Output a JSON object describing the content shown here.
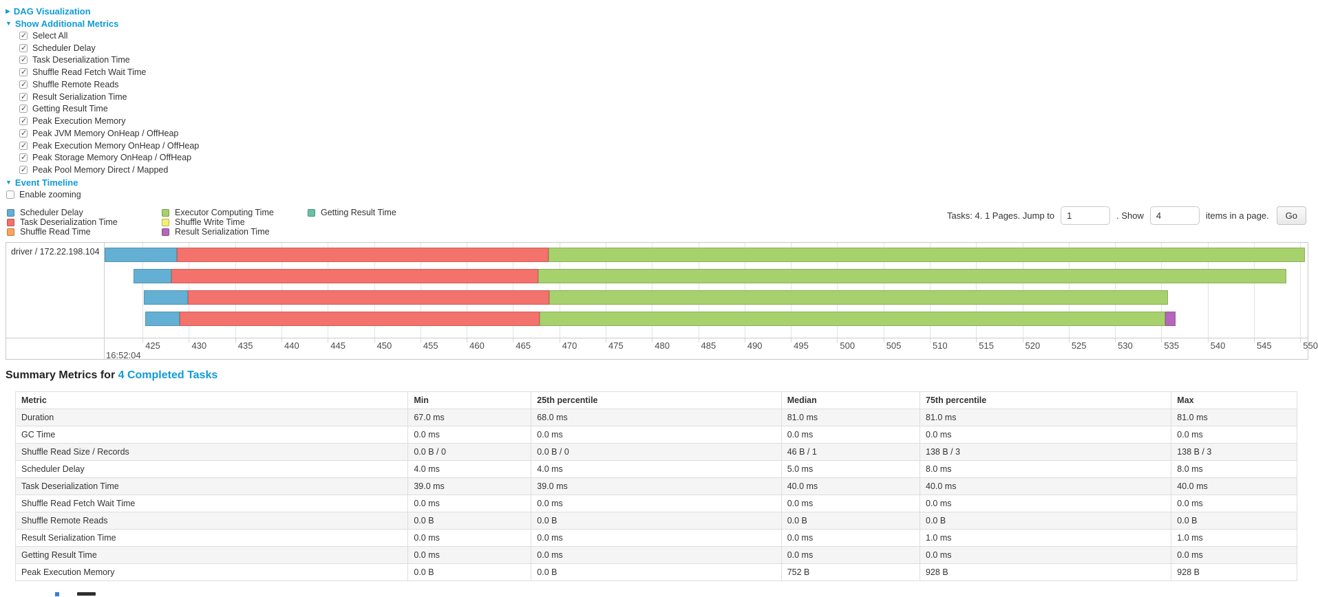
{
  "toggles": {
    "dag": {
      "label": "DAG Visualization",
      "state": "collapsed",
      "arrow": "▶"
    },
    "metrics": {
      "label": "Show Additional Metrics",
      "state": "expanded",
      "arrow": "▼"
    },
    "timeline": {
      "label": "Event Timeline",
      "state": "expanded",
      "arrow": "▼"
    }
  },
  "metrics_panel": {
    "all_checked": true,
    "items": [
      "Select All",
      "Scheduler Delay",
      "Task Deserialization Time",
      "Shuffle Read Fetch Wait Time",
      "Shuffle Remote Reads",
      "Result Serialization Time",
      "Getting Result Time",
      "Peak Execution Memory",
      "Peak JVM Memory OnHeap / OffHeap",
      "Peak Execution Memory OnHeap / OffHeap",
      "Peak Storage Memory OnHeap / OffHeap",
      "Peak Pool Memory Direct / Mapped"
    ]
  },
  "enable_zooming": {
    "label": "Enable zooming",
    "checked": false
  },
  "legend": {
    "columns": [
      [
        {
          "label": "Scheduler Delay",
          "color": "#63b0d4"
        },
        {
          "label": "Task Deserialization Time",
          "color": "#f3726b"
        },
        {
          "label": "Shuffle Read Time",
          "color": "#f9a65a"
        }
      ],
      [
        {
          "label": "Executor Computing Time",
          "color": "#a6d16c"
        },
        {
          "label": "Shuffle Write Time",
          "color": "#f5ee6e"
        },
        {
          "label": "Result Serialization Time",
          "color": "#b667ba"
        }
      ],
      [
        {
          "label": "Getting Result Time",
          "color": "#66c2a5"
        }
      ]
    ]
  },
  "pagination": {
    "prefix": "Tasks: 4. 1 Pages. Jump to",
    "jump_value": "1",
    "between": ". Show",
    "show_value": "4",
    "suffix": "items in a page.",
    "go_label": "Go"
  },
  "chart_data": {
    "type": "timeline",
    "group_label": "driver / 172.22.198.104",
    "x_axis": {
      "min": 420.9,
      "max": 550.8,
      "tick_first": 425,
      "tick_step": 5,
      "tick_last": 550,
      "major_label": "16:52:04",
      "unit": "ms within 16:52:04"
    },
    "tasks": [
      {
        "start": 420.9,
        "segments": [
          {
            "metric": "Scheduler Delay",
            "until": 428.7
          },
          {
            "metric": "Task Deserialization Time",
            "until": 468.8
          },
          {
            "metric": "Executor Computing Time",
            "until": 550.5
          }
        ]
      },
      {
        "start": 424.0,
        "segments": [
          {
            "metric": "Scheduler Delay",
            "until": 428.1
          },
          {
            "metric": "Task Deserialization Time",
            "until": 467.7
          },
          {
            "metric": "Executor Computing Time",
            "until": 548.5
          }
        ]
      },
      {
        "start": 425.1,
        "segments": [
          {
            "metric": "Scheduler Delay",
            "until": 429.9
          },
          {
            "metric": "Task Deserialization Time",
            "until": 468.9
          },
          {
            "metric": "Executor Computing Time",
            "until": 535.7
          }
        ]
      },
      {
        "start": 425.3,
        "segments": [
          {
            "metric": "Scheduler Delay",
            "until": 429.0
          },
          {
            "metric": "Task Deserialization Time",
            "until": 467.9
          },
          {
            "metric": "Executor Computing Time",
            "until": 535.4
          },
          {
            "metric": "Result Serialization Time",
            "until": 536.5
          }
        ]
      }
    ]
  },
  "summary": {
    "title_prefix": "Summary Metrics for ",
    "title_link": "4 Completed Tasks",
    "columns": [
      "Metric",
      "Min",
      "25th percentile",
      "Median",
      "75th percentile",
      "Max"
    ],
    "rows": [
      [
        "Duration",
        "67.0 ms",
        "68.0 ms",
        "81.0 ms",
        "81.0 ms",
        "81.0 ms"
      ],
      [
        "GC Time",
        "0.0 ms",
        "0.0 ms",
        "0.0 ms",
        "0.0 ms",
        "0.0 ms"
      ],
      [
        "Shuffle Read Size / Records",
        "0.0 B / 0",
        "0.0 B / 0",
        "46 B / 1",
        "138 B / 3",
        "138 B / 3"
      ],
      [
        "Scheduler Delay",
        "4.0 ms",
        "4.0 ms",
        "5.0 ms",
        "8.0 ms",
        "8.0 ms"
      ],
      [
        "Task Deserialization Time",
        "39.0 ms",
        "39.0 ms",
        "40.0 ms",
        "40.0 ms",
        "40.0 ms"
      ],
      [
        "Shuffle Read Fetch Wait Time",
        "0.0 ms",
        "0.0 ms",
        "0.0 ms",
        "0.0 ms",
        "0.0 ms"
      ],
      [
        "Shuffle Remote Reads",
        "0.0 B",
        "0.0 B",
        "0.0 B",
        "0.0 B",
        "0.0 B"
      ],
      [
        "Result Serialization Time",
        "0.0 ms",
        "0.0 ms",
        "0.0 ms",
        "1.0 ms",
        "1.0 ms"
      ],
      [
        "Getting Result Time",
        "0.0 ms",
        "0.0 ms",
        "0.0 ms",
        "0.0 ms",
        "0.0 ms"
      ],
      [
        "Peak Execution Memory",
        "0.0 B",
        "0.0 B",
        "752 B",
        "928 B",
        "928 B"
      ]
    ]
  }
}
